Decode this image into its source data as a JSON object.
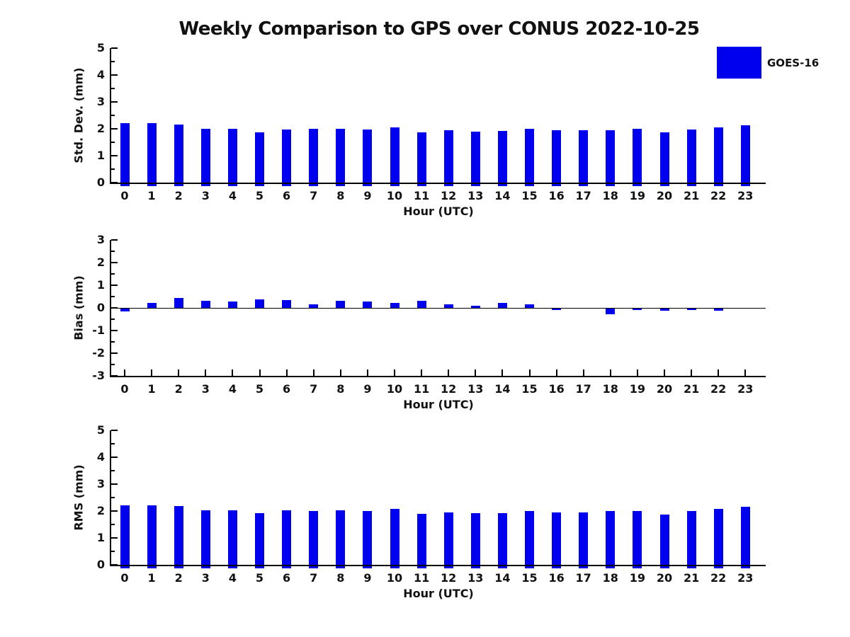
{
  "title": "Weekly Comparison to GPS over CONUS 2022-10-25",
  "legend": {
    "label": "GOES-16",
    "color": "#0000EE"
  },
  "chart_data": {
    "type": "bar",
    "xlabel": "Hour (UTC)",
    "categories": [
      "0",
      "1",
      "2",
      "3",
      "4",
      "5",
      "6",
      "7",
      "8",
      "9",
      "10",
      "11",
      "12",
      "13",
      "14",
      "15",
      "16",
      "17",
      "18",
      "19",
      "20",
      "21",
      "22",
      "23"
    ],
    "legend_position": "upper right outside plot",
    "grid": false,
    "subplots": [
      {
        "id": "stddev",
        "ylabel": "Std. Dev. (mm)",
        "ylim": [
          0,
          5
        ],
        "yticks": [
          0,
          1,
          2,
          3,
          4,
          5
        ],
        "series_name": "GOES-16",
        "values": [
          2.2,
          2.2,
          2.15,
          2.01,
          2.01,
          1.88,
          1.98,
          2.01,
          2.01,
          1.98,
          2.06,
          1.88,
          1.94,
          1.89,
          1.91,
          1.99,
          1.95,
          1.95,
          1.96,
          2.01,
          1.86,
          1.98,
          2.06,
          2.14
        ]
      },
      {
        "id": "bias",
        "ylabel": "Bias (mm)",
        "ylim": [
          -3,
          3
        ],
        "yticks": [
          -3,
          -2,
          -1,
          0,
          1,
          2,
          3
        ],
        "series_name": "GOES-16",
        "values": [
          -0.15,
          0.21,
          0.44,
          0.31,
          0.27,
          0.36,
          0.33,
          0.16,
          0.31,
          0.27,
          0.22,
          0.31,
          0.17,
          0.08,
          0.23,
          0.17,
          -0.08,
          -0.03,
          -0.28,
          -0.08,
          -0.12,
          -0.1,
          -0.12,
          0.0
        ]
      },
      {
        "id": "rms",
        "ylabel": "RMS (mm)",
        "ylim": [
          0,
          5
        ],
        "yticks": [
          0,
          1,
          2,
          3,
          4,
          5
        ],
        "series_name": "GOES-16",
        "values": [
          2.22,
          2.22,
          2.19,
          2.03,
          2.03,
          1.93,
          2.03,
          2.0,
          2.03,
          2.0,
          2.08,
          1.9,
          1.96,
          1.91,
          1.93,
          2.0,
          1.94,
          1.94,
          2.0,
          2.01,
          1.87,
          2.01,
          2.09,
          2.17
        ]
      }
    ]
  }
}
